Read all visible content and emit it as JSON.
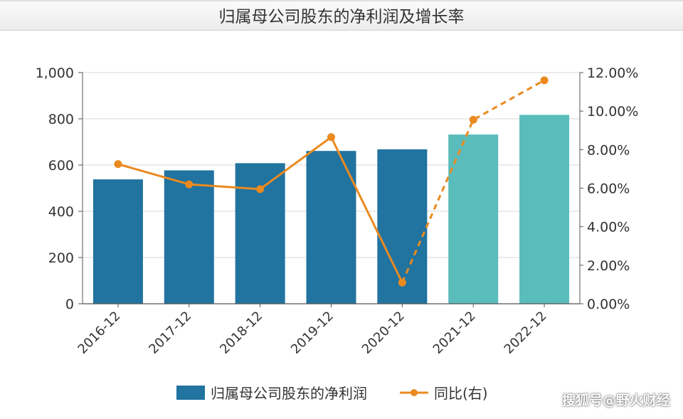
{
  "chart_data": {
    "type": "bar",
    "title": "归属母公司股东的净利润及增长率",
    "categories": [
      "2016-12",
      "2017-12",
      "2018-12",
      "2019-12",
      "2020-12",
      "2021-12",
      "2022-12"
    ],
    "series": [
      {
        "name": "归属母公司股东的净利润",
        "type": "bar",
        "axis": "left",
        "values": [
          538,
          577,
          608,
          661,
          668,
          732,
          817
        ],
        "colors": [
          "#2173a0",
          "#2173a0",
          "#2173a0",
          "#2173a0",
          "#2173a0",
          "#5bbcbc",
          "#5bbcbc"
        ]
      },
      {
        "name": "同比(右)",
        "type": "line",
        "axis": "right",
        "values": [
          7.25,
          6.2,
          5.95,
          8.65,
          1.1,
          9.55,
          11.6
        ],
        "color": "#ea8a1f",
        "dashed_from_index": 4
      }
    ],
    "y_left": {
      "min": 0,
      "max": 1000,
      "ticks": [
        "0",
        "200",
        "400",
        "600",
        "800",
        "1,000"
      ]
    },
    "y_right": {
      "min": 0,
      "max": 12,
      "ticks": [
        "0.00%",
        "2.00%",
        "4.00%",
        "6.00%",
        "8.00%",
        "10.00%",
        "12.00%"
      ]
    },
    "grid": true,
    "legend_position": "bottom"
  },
  "watermark": "搜狐号@野火财经"
}
